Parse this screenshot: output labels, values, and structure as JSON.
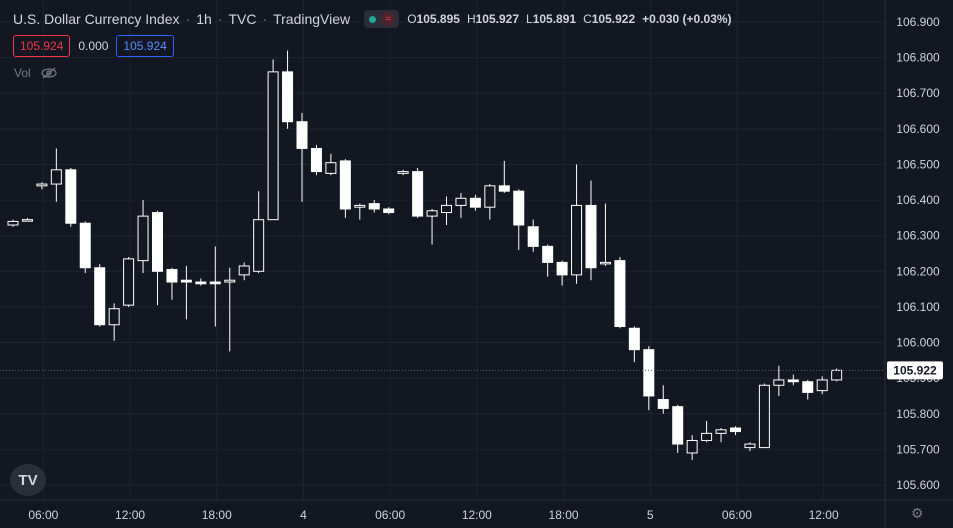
{
  "header": {
    "symbol": "U.S. Dollar Currency Index",
    "interval": "1h",
    "exchange": "TVC",
    "source": "TradingView",
    "market_status": "open",
    "ohlc": {
      "o_label": "O",
      "o": "105.895",
      "h_label": "H",
      "h": "105.927",
      "l_label": "L",
      "l": "105.891",
      "c_label": "C",
      "c": "105.922",
      "change": "+0.030 (+0.03%)"
    }
  },
  "quote": {
    "sell": "105.924",
    "spread": "0.000",
    "buy": "105.924"
  },
  "volume": {
    "label": "Vol"
  },
  "colors": {
    "background": "#131722",
    "grid": "#1f2330",
    "candle": "#ffffff",
    "text": "#d1d4dc",
    "muted": "#787b86",
    "sell": "#f23645",
    "buy": "#2962ff"
  },
  "chart_data": {
    "type": "candlestick",
    "y_ticks": [
      "106.900",
      "106.800",
      "106.700",
      "106.600",
      "106.500",
      "106.400",
      "106.300",
      "106.200",
      "106.100",
      "106.000",
      "105.900",
      "105.800",
      "105.700",
      "105.600"
    ],
    "ylim": [
      105.55,
      106.95
    ],
    "x_ticks": [
      {
        "label": "06:00",
        "index": 2.1
      },
      {
        "label": "12:00",
        "index": 8.1
      },
      {
        "label": "18:00",
        "index": 14.1
      },
      {
        "label": "4",
        "index": 20.1
      },
      {
        "label": "06:00",
        "index": 26.1
      },
      {
        "label": "12:00",
        "index": 32.1
      },
      {
        "label": "18:00",
        "index": 38.1
      },
      {
        "label": "5",
        "index": 44.1
      },
      {
        "label": "06:00",
        "index": 50.1
      },
      {
        "label": "12:00",
        "index": 56.1
      }
    ],
    "last_price": "105.922",
    "last_price_value": 105.922,
    "candles": [
      {
        "o": 106.33,
        "h": 106.345,
        "l": 106.325,
        "c": 106.34
      },
      {
        "o": 106.345,
        "h": 106.35,
        "l": 106.34,
        "c": 106.345
      },
      {
        "o": 106.44,
        "h": 106.45,
        "l": 106.43,
        "c": 106.445
      },
      {
        "o": 106.445,
        "h": 106.545,
        "l": 106.395,
        "c": 106.485
      },
      {
        "o": 106.485,
        "h": 106.49,
        "l": 106.325,
        "c": 106.335
      },
      {
        "o": 106.335,
        "h": 106.34,
        "l": 106.195,
        "c": 106.21
      },
      {
        "o": 106.21,
        "h": 106.22,
        "l": 106.045,
        "c": 106.05
      },
      {
        "o": 106.05,
        "h": 106.11,
        "l": 106.005,
        "c": 106.095
      },
      {
        "o": 106.105,
        "h": 106.24,
        "l": 106.1,
        "c": 106.235
      },
      {
        "o": 106.23,
        "h": 106.4,
        "l": 106.195,
        "c": 106.355
      },
      {
        "o": 106.365,
        "h": 106.37,
        "l": 106.105,
        "c": 106.2
      },
      {
        "o": 106.205,
        "h": 106.21,
        "l": 106.12,
        "c": 106.17
      },
      {
        "o": 106.175,
        "h": 106.215,
        "l": 106.065,
        "c": 106.17
      },
      {
        "o": 106.17,
        "h": 106.18,
        "l": 106.16,
        "c": 106.165
      },
      {
        "o": 106.17,
        "h": 106.27,
        "l": 106.045,
        "c": 106.165
      },
      {
        "o": 106.17,
        "h": 106.21,
        "l": 105.975,
        "c": 106.175
      },
      {
        "o": 106.19,
        "h": 106.225,
        "l": 106.175,
        "c": 106.215
      },
      {
        "o": 106.2,
        "h": 106.425,
        "l": 106.195,
        "c": 106.345
      },
      {
        "o": 106.345,
        "h": 106.795,
        "l": 106.345,
        "c": 106.76
      },
      {
        "o": 106.76,
        "h": 106.82,
        "l": 106.6,
        "c": 106.62
      },
      {
        "o": 106.62,
        "h": 106.645,
        "l": 106.395,
        "c": 106.545
      },
      {
        "o": 106.545,
        "h": 106.555,
        "l": 106.47,
        "c": 106.48
      },
      {
        "o": 106.475,
        "h": 106.53,
        "l": 106.47,
        "c": 106.505
      },
      {
        "o": 106.51,
        "h": 106.515,
        "l": 106.35,
        "c": 106.375
      },
      {
        "o": 106.38,
        "h": 106.39,
        "l": 106.345,
        "c": 106.385
      },
      {
        "o": 106.39,
        "h": 106.4,
        "l": 106.365,
        "c": 106.375
      },
      {
        "o": 106.375,
        "h": 106.38,
        "l": 106.36,
        "c": 106.365
      },
      {
        "o": 106.475,
        "h": 106.485,
        "l": 106.47,
        "c": 106.48
      },
      {
        "o": 106.48,
        "h": 106.49,
        "l": 106.35,
        "c": 106.355
      },
      {
        "o": 106.355,
        "h": 106.375,
        "l": 106.275,
        "c": 106.37
      },
      {
        "o": 106.365,
        "h": 106.41,
        "l": 106.33,
        "c": 106.385
      },
      {
        "o": 106.385,
        "h": 106.42,
        "l": 106.35,
        "c": 106.405
      },
      {
        "o": 106.405,
        "h": 106.415,
        "l": 106.37,
        "c": 106.38
      },
      {
        "o": 106.38,
        "h": 106.445,
        "l": 106.345,
        "c": 106.44
      },
      {
        "o": 106.44,
        "h": 106.51,
        "l": 106.42,
        "c": 106.425
      },
      {
        "o": 106.425,
        "h": 106.43,
        "l": 106.26,
        "c": 106.33
      },
      {
        "o": 106.325,
        "h": 106.345,
        "l": 106.255,
        "c": 106.27
      },
      {
        "o": 106.27,
        "h": 106.275,
        "l": 106.185,
        "c": 106.225
      },
      {
        "o": 106.225,
        "h": 106.23,
        "l": 106.16,
        "c": 106.19
      },
      {
        "o": 106.19,
        "h": 106.5,
        "l": 106.165,
        "c": 106.385
      },
      {
        "o": 106.385,
        "h": 106.455,
        "l": 106.175,
        "c": 106.21
      },
      {
        "o": 106.225,
        "h": 106.39,
        "l": 106.215,
        "c": 106.225
      },
      {
        "o": 106.23,
        "h": 106.24,
        "l": 106.04,
        "c": 106.045
      },
      {
        "o": 106.04,
        "h": 106.045,
        "l": 105.945,
        "c": 105.98
      },
      {
        "o": 105.98,
        "h": 105.99,
        "l": 105.81,
        "c": 105.85
      },
      {
        "o": 105.84,
        "h": 105.88,
        "l": 105.8,
        "c": 105.815
      },
      {
        "o": 105.82,
        "h": 105.825,
        "l": 105.69,
        "c": 105.715
      },
      {
        "o": 105.69,
        "h": 105.74,
        "l": 105.67,
        "c": 105.725
      },
      {
        "o": 105.725,
        "h": 105.78,
        "l": 105.72,
        "c": 105.745
      },
      {
        "o": 105.745,
        "h": 105.76,
        "l": 105.72,
        "c": 105.755
      },
      {
        "o": 105.76,
        "h": 105.765,
        "l": 105.74,
        "c": 105.75
      },
      {
        "o": 105.705,
        "h": 105.72,
        "l": 105.695,
        "c": 105.715
      },
      {
        "o": 105.705,
        "h": 105.885,
        "l": 105.705,
        "c": 105.88
      },
      {
        "o": 105.88,
        "h": 105.935,
        "l": 105.85,
        "c": 105.895
      },
      {
        "o": 105.895,
        "h": 105.91,
        "l": 105.88,
        "c": 105.89
      },
      {
        "o": 105.89,
        "h": 105.895,
        "l": 105.84,
        "c": 105.86
      },
      {
        "o": 105.865,
        "h": 105.905,
        "l": 105.855,
        "c": 105.895
      },
      {
        "o": 105.895,
        "h": 105.927,
        "l": 105.891,
        "c": 105.922
      }
    ]
  }
}
